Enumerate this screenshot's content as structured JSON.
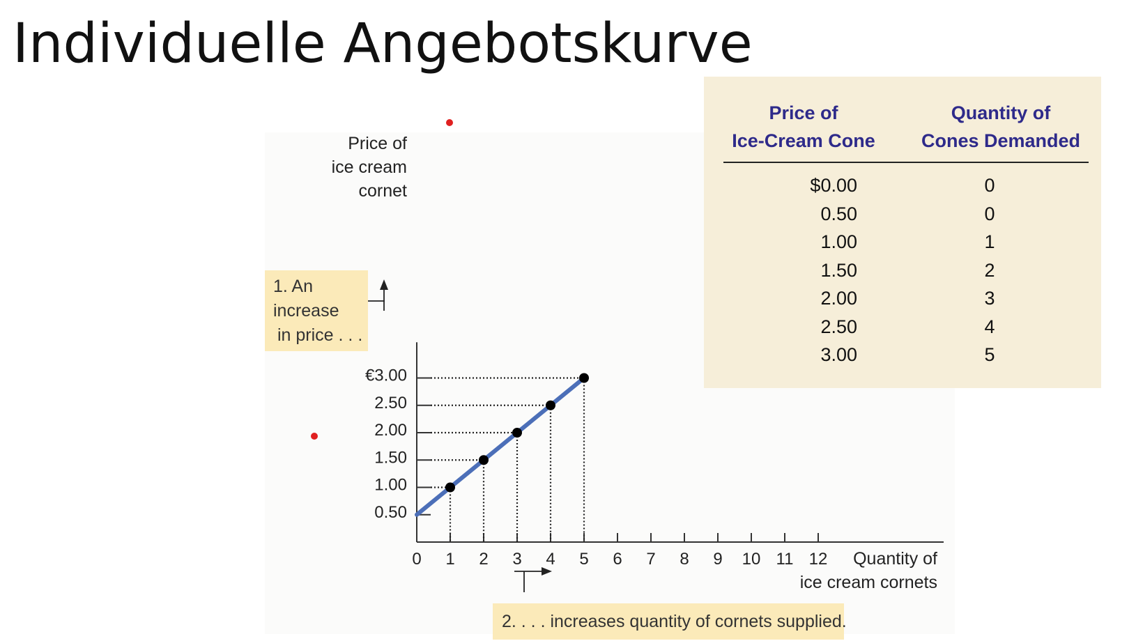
{
  "title": "Individuelle Angebotskurve",
  "chart_data": {
    "type": "line",
    "ylabel": [
      "Price of",
      "ice cream",
      "cornet"
    ],
    "xlabel": [
      "Quantity of",
      "ice cream cornets"
    ],
    "y_ticks": [
      "0.50",
      "1.00",
      "1.50",
      "2.00",
      "2.50",
      "€3.00"
    ],
    "y_tick_values": [
      0.5,
      1.0,
      1.5,
      2.0,
      2.5,
      3.0
    ],
    "x_ticks": [
      "0",
      "1",
      "2",
      "3",
      "4",
      "5",
      "6",
      "7",
      "8",
      "9",
      "10",
      "11",
      "12"
    ],
    "xlim": [
      0,
      12
    ],
    "ylim": [
      0,
      3.5
    ],
    "series": [
      {
        "x": [
          0,
          1,
          2,
          3,
          4,
          5
        ],
        "y": [
          0.5,
          1.0,
          1.5,
          2.0,
          2.5,
          3.0
        ],
        "markers_from_index": 1,
        "color": "#4c6fb8",
        "marker_color": "#000000"
      }
    ],
    "guide_lines": "dotted",
    "grid": false
  },
  "annotations": {
    "price_increase": [
      "1. An",
      "increase",
      "in price . . ."
    ],
    "quantity_increase": "2. . . . increases quantity of cornets supplied."
  },
  "table": {
    "headers": [
      [
        "Price of",
        "Ice-Cream Cone"
      ],
      [
        "Quantity of",
        "Cones Demanded"
      ]
    ],
    "prices": [
      "$0.00",
      "0.50",
      "1.00",
      "1.50",
      "2.00",
      "2.50",
      "3.00"
    ],
    "quantities": [
      "0",
      "0",
      "1",
      "2",
      "3",
      "4",
      "5"
    ]
  },
  "colors": {
    "curve": "#4c6fb8",
    "annotation_bg": "#fbeab9",
    "table_bg": "#f6eed9",
    "header_text": "#2e2a8a",
    "marker_dot": "#e02020"
  }
}
